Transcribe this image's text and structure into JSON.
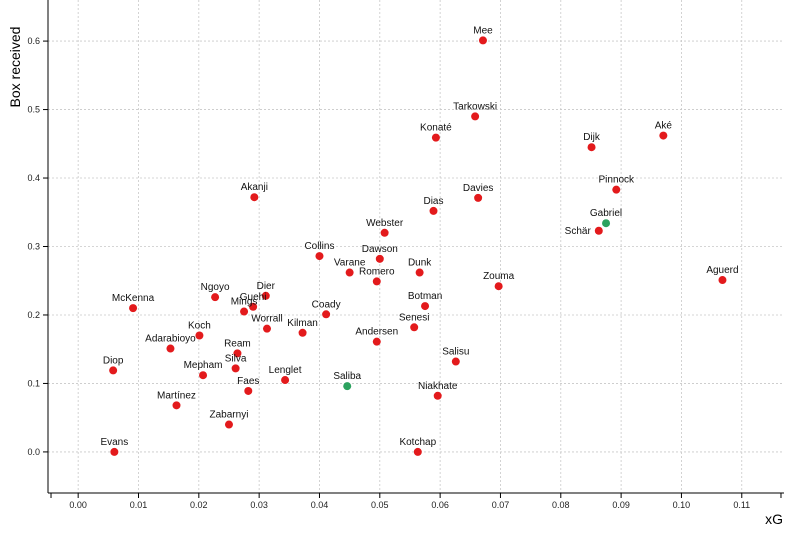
{
  "chart_data": {
    "type": "scatter",
    "xlabel": "xG",
    "ylabel": "Box received",
    "xlim": [
      -0.005,
      0.117
    ],
    "ylim": [
      -0.06,
      0.66
    ],
    "xticks": [
      0.0,
      0.01,
      0.02,
      0.03,
      0.04,
      0.05,
      0.06,
      0.07,
      0.08,
      0.09,
      0.1,
      0.11
    ],
    "xtick_labels": [
      "0.00",
      "0.01",
      "0.02",
      "0.03",
      "0.04",
      "0.05",
      "0.06",
      "0.07",
      "0.08",
      "0.09",
      "0.10",
      "0.11"
    ],
    "yticks": [
      0.0,
      0.1,
      0.2,
      0.3,
      0.4,
      0.5,
      0.6
    ],
    "ytick_labels": [
      "0.0",
      "0.1",
      "0.2",
      "0.3",
      "0.4",
      "0.5",
      "0.6"
    ],
    "grid": true,
    "colors": {
      "default": "#e31a1c",
      "highlight": "#2ca25f"
    },
    "points": [
      {
        "name": "Mee",
        "x": 0.0671,
        "y": 0.601,
        "highlight": false,
        "label_pos": "top"
      },
      {
        "name": "Tarkowski",
        "x": 0.0658,
        "y": 0.49,
        "highlight": false,
        "label_pos": "top"
      },
      {
        "name": "Konaté",
        "x": 0.0593,
        "y": 0.459,
        "highlight": false,
        "label_pos": "top"
      },
      {
        "name": "Dijk",
        "x": 0.0851,
        "y": 0.445,
        "highlight": false,
        "label_pos": "top"
      },
      {
        "name": "Aké",
        "x": 0.097,
        "y": 0.462,
        "highlight": false,
        "label_pos": "top"
      },
      {
        "name": "Pinnock",
        "x": 0.0892,
        "y": 0.383,
        "highlight": false,
        "label_pos": "top"
      },
      {
        "name": "Gabriel",
        "x": 0.0875,
        "y": 0.334,
        "highlight": true,
        "label_pos": "top"
      },
      {
        "name": "Schär",
        "x": 0.0863,
        "y": 0.323,
        "highlight": false,
        "label_pos": "left"
      },
      {
        "name": "Akanji",
        "x": 0.0292,
        "y": 0.372,
        "highlight": false,
        "label_pos": "top"
      },
      {
        "name": "Davies",
        "x": 0.0663,
        "y": 0.371,
        "highlight": false,
        "label_pos": "top"
      },
      {
        "name": "Dias",
        "x": 0.0589,
        "y": 0.352,
        "highlight": false,
        "label_pos": "top"
      },
      {
        "name": "Webster",
        "x": 0.0508,
        "y": 0.32,
        "highlight": false,
        "label_pos": "top"
      },
      {
        "name": "Collins",
        "x": 0.04,
        "y": 0.286,
        "highlight": false,
        "label_pos": "top"
      },
      {
        "name": "Dawson",
        "x": 0.05,
        "y": 0.282,
        "highlight": false,
        "label_pos": "top"
      },
      {
        "name": "Varane",
        "x": 0.045,
        "y": 0.262,
        "highlight": false,
        "label_pos": "top"
      },
      {
        "name": "Dunk",
        "x": 0.0566,
        "y": 0.262,
        "highlight": false,
        "label_pos": "top"
      },
      {
        "name": "Romero",
        "x": 0.0495,
        "y": 0.249,
        "highlight": false,
        "label_pos": "top"
      },
      {
        "name": "Zouma",
        "x": 0.0697,
        "y": 0.242,
        "highlight": false,
        "label_pos": "top"
      },
      {
        "name": "Aguerd",
        "x": 0.1068,
        "y": 0.251,
        "highlight": false,
        "label_pos": "top"
      },
      {
        "name": "McKenna",
        "x": 0.0091,
        "y": 0.21,
        "highlight": false,
        "label_pos": "top"
      },
      {
        "name": "Ngoyo",
        "x": 0.0227,
        "y": 0.226,
        "highlight": false,
        "label_pos": "top"
      },
      {
        "name": "Dier",
        "x": 0.0311,
        "y": 0.228,
        "highlight": false,
        "label_pos": "top"
      },
      {
        "name": "Guehi",
        "x": 0.029,
        "y": 0.212,
        "highlight": false,
        "label_pos": "top"
      },
      {
        "name": "Mings",
        "x": 0.0275,
        "y": 0.205,
        "highlight": false,
        "label_pos": "top"
      },
      {
        "name": "Botman",
        "x": 0.0575,
        "y": 0.213,
        "highlight": false,
        "label_pos": "top"
      },
      {
        "name": "Coady",
        "x": 0.0411,
        "y": 0.201,
        "highlight": false,
        "label_pos": "top"
      },
      {
        "name": "Worrall",
        "x": 0.0313,
        "y": 0.18,
        "highlight": false,
        "label_pos": "top"
      },
      {
        "name": "Kilman",
        "x": 0.0372,
        "y": 0.174,
        "highlight": false,
        "label_pos": "top"
      },
      {
        "name": "Senesi",
        "x": 0.0557,
        "y": 0.182,
        "highlight": false,
        "label_pos": "top"
      },
      {
        "name": "Koch",
        "x": 0.0201,
        "y": 0.17,
        "highlight": false,
        "label_pos": "top"
      },
      {
        "name": "Andersen",
        "x": 0.0495,
        "y": 0.161,
        "highlight": false,
        "label_pos": "top"
      },
      {
        "name": "Adarabioyo",
        "x": 0.0153,
        "y": 0.151,
        "highlight": false,
        "label_pos": "top"
      },
      {
        "name": "Ream",
        "x": 0.0264,
        "y": 0.144,
        "highlight": false,
        "label_pos": "top"
      },
      {
        "name": "Salisu",
        "x": 0.0626,
        "y": 0.132,
        "highlight": false,
        "label_pos": "top"
      },
      {
        "name": "Silva",
        "x": 0.0261,
        "y": 0.122,
        "highlight": false,
        "label_pos": "top"
      },
      {
        "name": "Diop",
        "x": 0.0058,
        "y": 0.119,
        "highlight": false,
        "label_pos": "top"
      },
      {
        "name": "Mepham",
        "x": 0.0207,
        "y": 0.112,
        "highlight": false,
        "label_pos": "top"
      },
      {
        "name": "Lenglet",
        "x": 0.0343,
        "y": 0.105,
        "highlight": false,
        "label_pos": "top"
      },
      {
        "name": "Saliba",
        "x": 0.0446,
        "y": 0.096,
        "highlight": true,
        "label_pos": "top"
      },
      {
        "name": "Faes",
        "x": 0.0282,
        "y": 0.089,
        "highlight": false,
        "label_pos": "top"
      },
      {
        "name": "Niakhate",
        "x": 0.0596,
        "y": 0.082,
        "highlight": false,
        "label_pos": "top"
      },
      {
        "name": "Martínez",
        "x": 0.0163,
        "y": 0.068,
        "highlight": false,
        "label_pos": "top"
      },
      {
        "name": "Zabarnyi",
        "x": 0.025,
        "y": 0.04,
        "highlight": false,
        "label_pos": "top"
      },
      {
        "name": "Evans",
        "x": 0.006,
        "y": 0.0,
        "highlight": false,
        "label_pos": "top"
      },
      {
        "name": "Kotchap",
        "x": 0.0563,
        "y": 0.0,
        "highlight": false,
        "label_pos": "top"
      }
    ]
  }
}
